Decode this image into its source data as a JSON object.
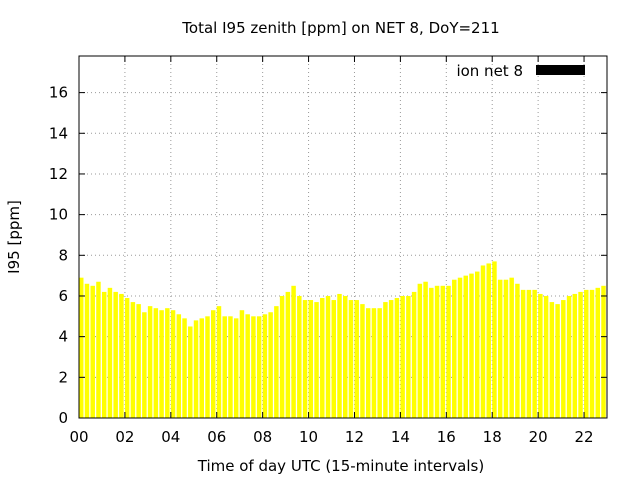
{
  "chart_data": {
    "type": "bar",
    "title": "Total I95 zenith [ppm] on NET 8, DoY=211",
    "xlabel": "Time of day UTC (15-minute intervals)",
    "ylabel": "I95 [ppm]",
    "xlim": [
      0,
      23
    ],
    "ylim": [
      0,
      17.8
    ],
    "bin_hours": 0.25,
    "xticks": [
      "00",
      "02",
      "04",
      "06",
      "08",
      "10",
      "12",
      "14",
      "16",
      "18",
      "20",
      "22"
    ],
    "yticks": [
      "0",
      "2",
      "4",
      "6",
      "8",
      "10",
      "12",
      "14",
      "16"
    ],
    "grid": true,
    "legend_position": "top-right",
    "series": [
      {
        "name": "ion net 8",
        "bar_color": "#ffff00",
        "legend_key_color": "#000000",
        "values": [
          6.9,
          6.6,
          6.5,
          6.7,
          6.2,
          6.4,
          6.2,
          6.1,
          5.9,
          5.7,
          5.6,
          5.2,
          5.5,
          5.4,
          5.3,
          5.4,
          5.3,
          5.1,
          4.9,
          4.5,
          4.8,
          4.9,
          5.0,
          5.3,
          5.5,
          5.0,
          5.0,
          4.9,
          5.3,
          5.1,
          5.0,
          5.0,
          5.1,
          5.2,
          5.5,
          6.0,
          6.2,
          6.5,
          6.0,
          5.8,
          5.8,
          5.7,
          5.9,
          6.0,
          5.8,
          6.1,
          6.0,
          5.8,
          5.8,
          5.6,
          5.4,
          5.4,
          5.4,
          5.7,
          5.8,
          5.9,
          6.0,
          6.0,
          6.2,
          6.6,
          6.7,
          6.4,
          6.5,
          6.5,
          6.5,
          6.8,
          6.9,
          7.0,
          7.1,
          7.2,
          7.5,
          7.6,
          7.7,
          6.8,
          6.8,
          6.9,
          6.6,
          6.3,
          6.3,
          6.3,
          6.1,
          6.0,
          5.7,
          5.6,
          5.8,
          6.0,
          6.1,
          6.2,
          6.3,
          6.3,
          6.4,
          6.5
        ]
      }
    ]
  }
}
